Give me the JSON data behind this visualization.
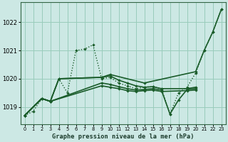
{
  "bg_color": "#cce8e4",
  "grid_color": "#99ccbb",
  "line_color": "#1a5c2a",
  "title": "Graphe pression niveau de la mer (hPa)",
  "xlim": [
    -0.5,
    23.5
  ],
  "ylim": [
    1018.4,
    1022.7
  ],
  "yticks": [
    1019,
    1020,
    1021,
    1022
  ],
  "xticks": [
    0,
    1,
    2,
    3,
    4,
    5,
    6,
    7,
    8,
    9,
    10,
    11,
    12,
    13,
    14,
    15,
    16,
    17,
    18,
    19,
    20,
    21,
    22,
    23
  ],
  "series": [
    {
      "x": [
        0,
        1,
        2,
        3,
        4,
        5,
        6,
        7,
        8,
        9,
        10,
        11,
        12,
        13,
        14,
        15,
        16,
        17,
        18,
        19,
        20,
        21,
        22,
        23
      ],
      "y": [
        1018.7,
        1018.85,
        1019.3,
        1019.2,
        1020.0,
        1019.5,
        1021.0,
        1021.05,
        1021.2,
        1020.0,
        1020.05,
        1019.85,
        1019.75,
        1019.65,
        1019.7,
        1019.72,
        1019.65,
        1018.75,
        1019.5,
        1019.7,
        1020.2,
        1021.0,
        1021.65,
        1022.45
      ],
      "style": "dotted",
      "lw": 1.0
    },
    {
      "x": [
        0,
        2,
        3,
        4,
        9,
        10,
        14,
        20,
        21,
        22,
        23
      ],
      "y": [
        1018.7,
        1019.3,
        1019.2,
        1020.0,
        1020.05,
        1020.15,
        1019.85,
        1020.25,
        1021.0,
        1021.65,
        1022.45
      ],
      "style": "solid",
      "lw": 1.2
    },
    {
      "x": [
        0,
        2,
        3,
        9,
        10,
        11,
        12,
        13,
        14,
        15,
        16,
        17,
        18,
        19,
        20
      ],
      "y": [
        1018.7,
        1019.3,
        1019.2,
        1019.85,
        1019.8,
        1019.72,
        1019.65,
        1019.6,
        1019.62,
        1019.65,
        1019.6,
        1018.75,
        1019.25,
        1019.62,
        1019.65
      ],
      "style": "solid",
      "lw": 1.2
    },
    {
      "x": [
        0,
        2,
        3,
        9,
        10,
        11,
        12,
        13,
        14,
        15,
        16,
        19,
        20
      ],
      "y": [
        1018.7,
        1019.3,
        1019.2,
        1019.75,
        1019.7,
        1019.65,
        1019.58,
        1019.55,
        1019.58,
        1019.6,
        1019.55,
        1019.58,
        1019.6
      ],
      "style": "solid",
      "lw": 1.2
    },
    {
      "x": [
        0,
        2,
        3,
        4,
        9,
        10,
        11,
        12,
        13,
        14,
        15,
        16,
        19,
        20
      ],
      "y": [
        1018.7,
        1019.3,
        1019.2,
        1020.0,
        1020.05,
        1020.1,
        1019.95,
        1019.85,
        1019.75,
        1019.7,
        1019.72,
        1019.65,
        1019.65,
        1019.7
      ],
      "style": "solid",
      "lw": 1.2
    }
  ]
}
